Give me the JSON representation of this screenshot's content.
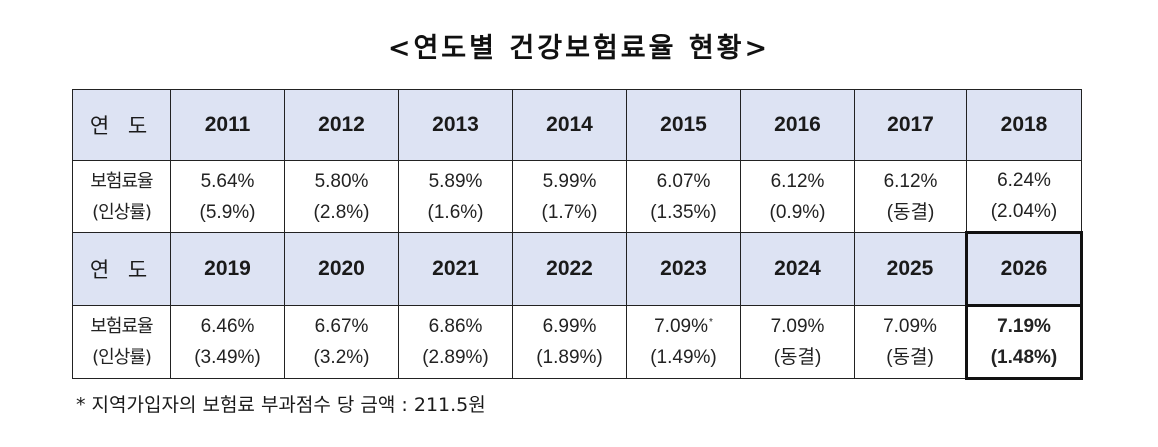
{
  "title": "<연도별 건강보험료율 현황>",
  "table": {
    "year_header": "연 도",
    "rate_header_line1": "보험료율",
    "rate_header_line2": "(인상률)",
    "section1": {
      "years": [
        "2011",
        "2012",
        "2013",
        "2014",
        "2015",
        "2016",
        "2017",
        "2018"
      ],
      "rates": [
        "5.64%",
        "5.80%",
        "5.89%",
        "5.99%",
        "6.07%",
        "6.12%",
        "6.12%",
        "6.24%"
      ],
      "changes": [
        "(5.9%)",
        "(2.8%)",
        "(1.6%)",
        "(1.7%)",
        "(1.35%)",
        "(0.9%)",
        "(동결)",
        "(2.04%)"
      ]
    },
    "section2": {
      "years": [
        "2019",
        "2020",
        "2021",
        "2022",
        "2023",
        "2024",
        "2025",
        "2026"
      ],
      "rates": [
        "6.46%",
        "6.67%",
        "6.86%",
        "6.99%",
        "7.09%",
        "7.09%",
        "7.09%",
        "7.19%"
      ],
      "changes": [
        "(3.49%)",
        "(3.2%)",
        "(2.89%)",
        "(1.89%)",
        "(1.49%)",
        "(동결)",
        "(동결)",
        "(1.48%)"
      ],
      "note_mark": "*"
    },
    "highlighted_year": "2026"
  },
  "footnote": "* 지역가입자의 보험료 부과점수 당 금액 : 211.5원"
}
